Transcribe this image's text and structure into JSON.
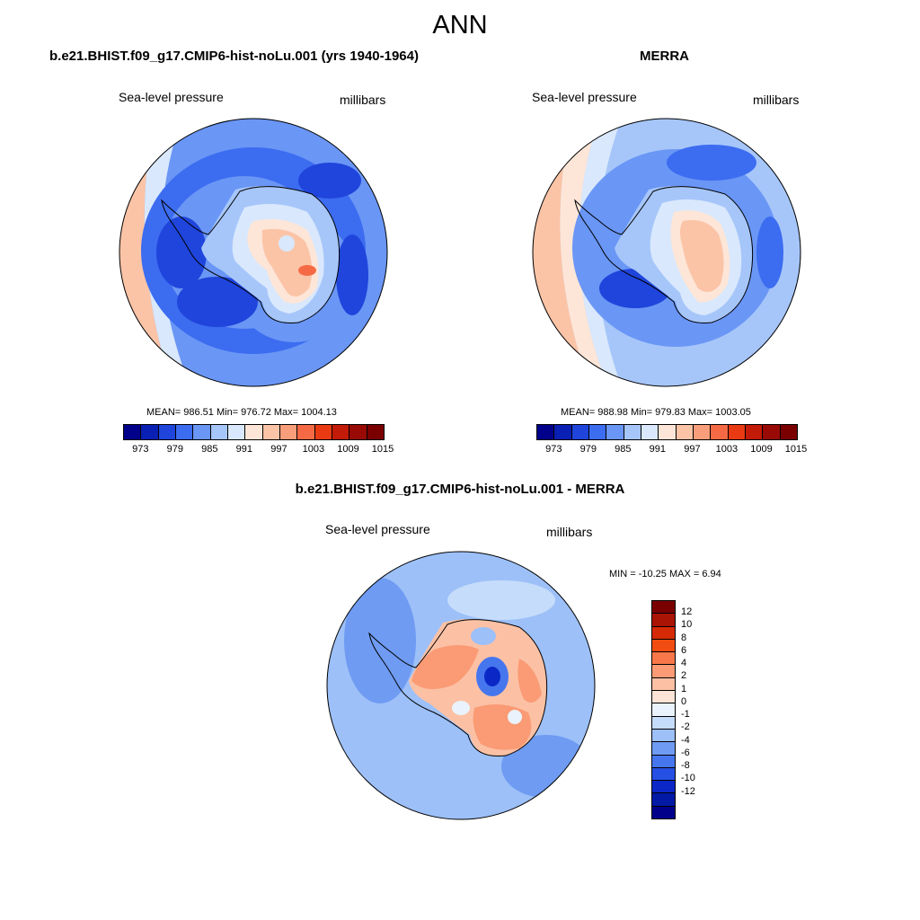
{
  "main_title": "ANN",
  "panels": [
    {
      "title": "b.e21.BHIST.f09_g17.CMIP6-hist-noLu.001 (yrs 1940-1964)",
      "variable": "Sea-level pressure",
      "units": "millibars",
      "stats": "MEAN= 986.51  Min= 976.72  Max= 1004.13"
    },
    {
      "title": "MERRA",
      "variable": "Sea-level pressure",
      "units": "millibars",
      "stats": "MEAN= 988.98  Min= 979.83  Max= 1003.05"
    },
    {
      "title": "b.e21.BHIST.f09_g17.CMIP6-hist-noLu.001 - MERRA",
      "variable": "Sea-level pressure",
      "units": "millibars",
      "stats": "MIN = -10.25 MAX =   6.94"
    }
  ],
  "colorbar_abs": {
    "colors": [
      "#00008b",
      "#0a1fb4",
      "#1f45dc",
      "#3c6cf0",
      "#6a96f5",
      "#a6c6fa",
      "#d9e8fc",
      "#fde6d8",
      "#fbc4a7",
      "#f99e7a",
      "#f56a44",
      "#e93a13",
      "#c41a08",
      "#9a0a05",
      "#7a0000"
    ],
    "labels": [
      "973",
      "979",
      "985",
      "991",
      "997",
      "1003",
      "1009",
      "1015"
    ]
  },
  "colorbar_diff": {
    "colors": [
      "#7a0000",
      "#aa1405",
      "#d62a06",
      "#f14d12",
      "#f7774a",
      "#fa9b75",
      "#fcc1a5",
      "#fde4d6",
      "#eaf3fd",
      "#c6dcfb",
      "#9dc0f8",
      "#6f9bf2",
      "#4676ee",
      "#2550e3",
      "#0b28c7",
      "#001aa6",
      "#00008b"
    ],
    "labels": [
      "12",
      "10",
      "8",
      "6",
      "4",
      "2",
      "1",
      "0",
      "-1",
      "-2",
      "-4",
      "-6",
      "-8",
      "-10",
      "-12"
    ]
  }
}
